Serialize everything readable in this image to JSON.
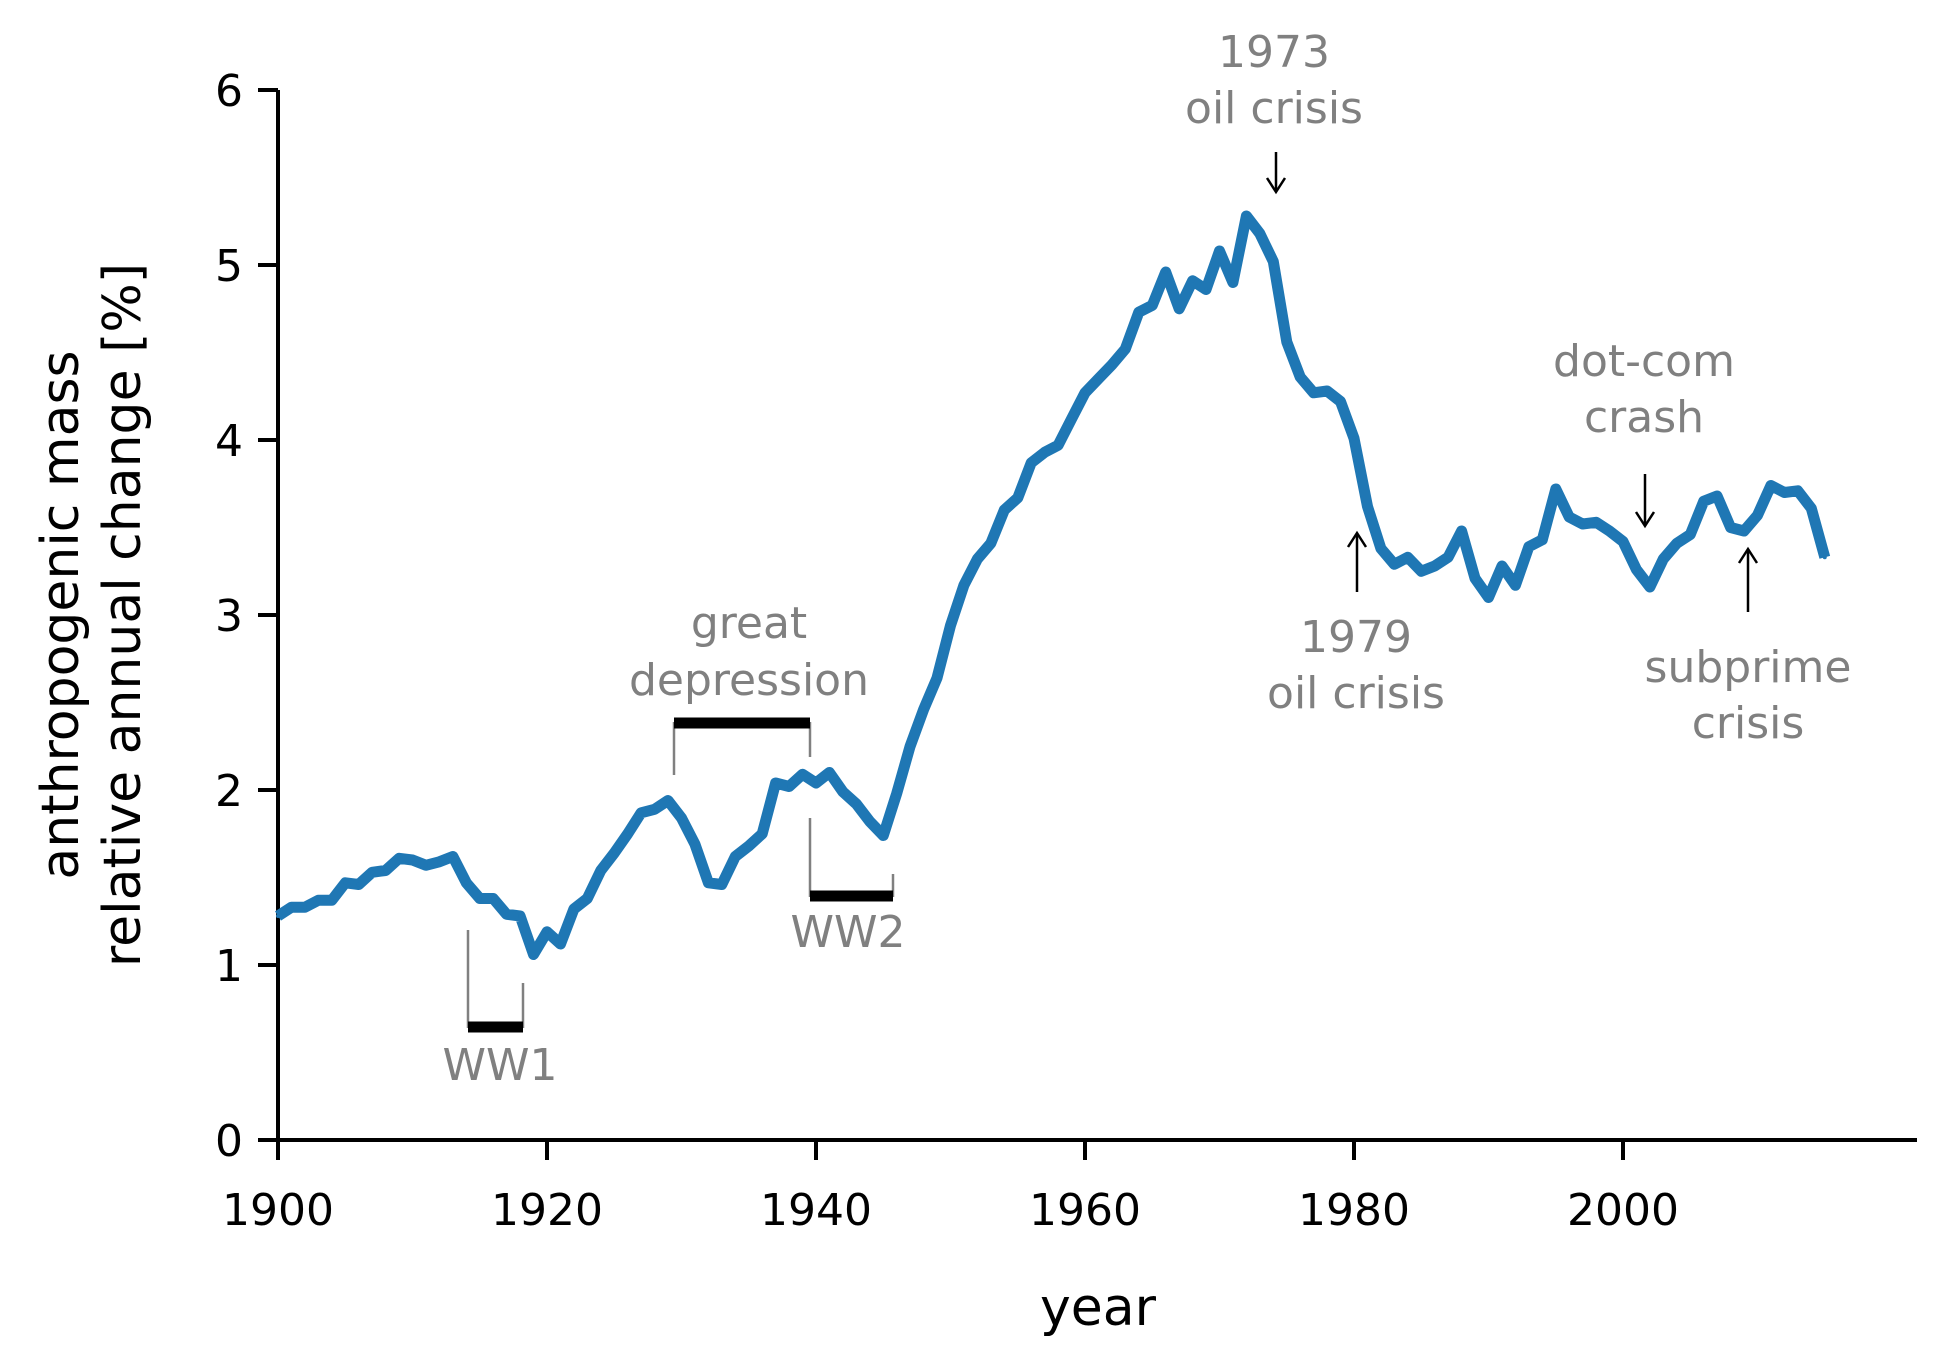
{
  "colors": {
    "series": "#1f77b4",
    "annotation_text": "#808080",
    "axis": "#000000",
    "bracket": "#000000"
  },
  "chart_data": {
    "type": "line",
    "xlabel": "year",
    "ylabel_lines": [
      "anthropogenic mass",
      "relative annual change [%]"
    ],
    "xlim": [
      1900,
      2020
    ],
    "ylim": [
      0,
      6
    ],
    "x_ticks": [
      {
        "value": 1900,
        "label": "1900"
      },
      {
        "value": 1920,
        "label": "1920"
      },
      {
        "value": 1940,
        "label": "1940"
      },
      {
        "value": 1960,
        "label": "1960"
      },
      {
        "value": 1980,
        "label": "1980"
      },
      {
        "value": 2000,
        "label": "2000"
      }
    ],
    "y_ticks": [
      {
        "value": 0,
        "label": "0"
      },
      {
        "value": 1,
        "label": "1"
      },
      {
        "value": 2,
        "label": "2"
      },
      {
        "value": 3,
        "label": "3"
      },
      {
        "value": 4,
        "label": "4"
      },
      {
        "value": 5,
        "label": "5"
      },
      {
        "value": 6,
        "label": "6"
      }
    ],
    "grid": false,
    "series": [
      {
        "x": [
          1900,
          1901,
          1902,
          1903,
          1904,
          1905,
          1906,
          1907,
          1908,
          1909,
          1910,
          1911,
          1912,
          1913,
          1914,
          1915,
          1916,
          1917,
          1918,
          1919,
          1920,
          1921,
          1922,
          1923,
          1924,
          1925,
          1926,
          1927,
          1928,
          1929,
          1930,
          1931,
          1932,
          1933,
          1934,
          1935,
          1936,
          1937,
          1938,
          1939,
          1940,
          1941,
          1942,
          1943,
          1944,
          1945,
          1946,
          1947,
          1948,
          1949,
          1950,
          1951,
          1952,
          1953,
          1954,
          1955,
          1956,
          1957,
          1958,
          1959,
          1960,
          1961,
          1962,
          1963,
          1964,
          1965,
          1966,
          1967,
          1968,
          1969,
          1970,
          1971,
          1972,
          1973,
          1974,
          1975,
          1976,
          1977,
          1978,
          1979,
          1980,
          1981,
          1982,
          1983,
          1984,
          1985,
          1986,
          1987,
          1988,
          1989,
          1990,
          1991,
          1992,
          1993,
          1994,
          1995,
          1996,
          1997,
          1998,
          1999,
          2000,
          2001,
          2002,
          2003,
          2004,
          2005,
          2006,
          2007,
          2008,
          2009,
          2010,
          2011,
          2012,
          2013,
          2014,
          2015
        ],
        "y": [
          1.28,
          1.33,
          1.33,
          1.37,
          1.37,
          1.47,
          1.46,
          1.53,
          1.54,
          1.61,
          1.6,
          1.57,
          1.59,
          1.62,
          1.47,
          1.38,
          1.38,
          1.29,
          1.28,
          1.06,
          1.19,
          1.12,
          1.32,
          1.38,
          1.54,
          1.64,
          1.75,
          1.87,
          1.89,
          1.94,
          1.84,
          1.69,
          1.47,
          1.46,
          1.62,
          1.68,
          1.75,
          2.04,
          2.02,
          2.09,
          2.04,
          2.1,
          1.99,
          1.92,
          1.82,
          1.74,
          1.98,
          2.25,
          2.46,
          2.64,
          2.94,
          3.17,
          3.32,
          3.41,
          3.6,
          3.67,
          3.87,
          3.93,
          3.97,
          4.12,
          4.27,
          4.35,
          4.43,
          4.52,
          4.73,
          4.77,
          4.96,
          4.75,
          4.91,
          4.86,
          5.08,
          4.9,
          5.28,
          5.18,
          5.02,
          4.56,
          4.36,
          4.27,
          4.28,
          4.22,
          4.01,
          3.62,
          3.38,
          3.29,
          3.33,
          3.25,
          3.28,
          3.33,
          3.48,
          3.21,
          3.1,
          3.28,
          3.17,
          3.39,
          3.43,
          3.72,
          3.56,
          3.52,
          3.53,
          3.48,
          3.42,
          3.26,
          3.16,
          3.32,
          3.41,
          3.46,
          3.65,
          3.68,
          3.5,
          3.48,
          3.57,
          3.74,
          3.7,
          3.71,
          3.61,
          3.33
        ]
      }
    ],
    "annotations": [
      {
        "id": "oil-1973",
        "lines": [
          "1973",
          "oil crisis"
        ],
        "arrow_year": 1973,
        "arrow_direction": "down"
      },
      {
        "id": "oil-1979",
        "lines": [
          "1979",
          "oil crisis"
        ],
        "arrow_year": 1979,
        "arrow_direction": "up"
      },
      {
        "id": "dotcom",
        "lines": [
          "dot-com",
          "crash"
        ],
        "arrow_year": 2000,
        "arrow_direction": "down"
      },
      {
        "id": "subprime",
        "lines": [
          "subprime",
          "crisis"
        ],
        "arrow_year": 2008,
        "arrow_direction": "up"
      }
    ],
    "periods": [
      {
        "id": "ww1",
        "label": "WW1",
        "start": 1914,
        "end": 1918
      },
      {
        "id": "great-depression",
        "lines": [
          "great",
          "depression"
        ],
        "start": 1929,
        "end": 1939
      },
      {
        "id": "ww2",
        "label": "WW2",
        "start": 1939,
        "end": 1945
      }
    ]
  }
}
